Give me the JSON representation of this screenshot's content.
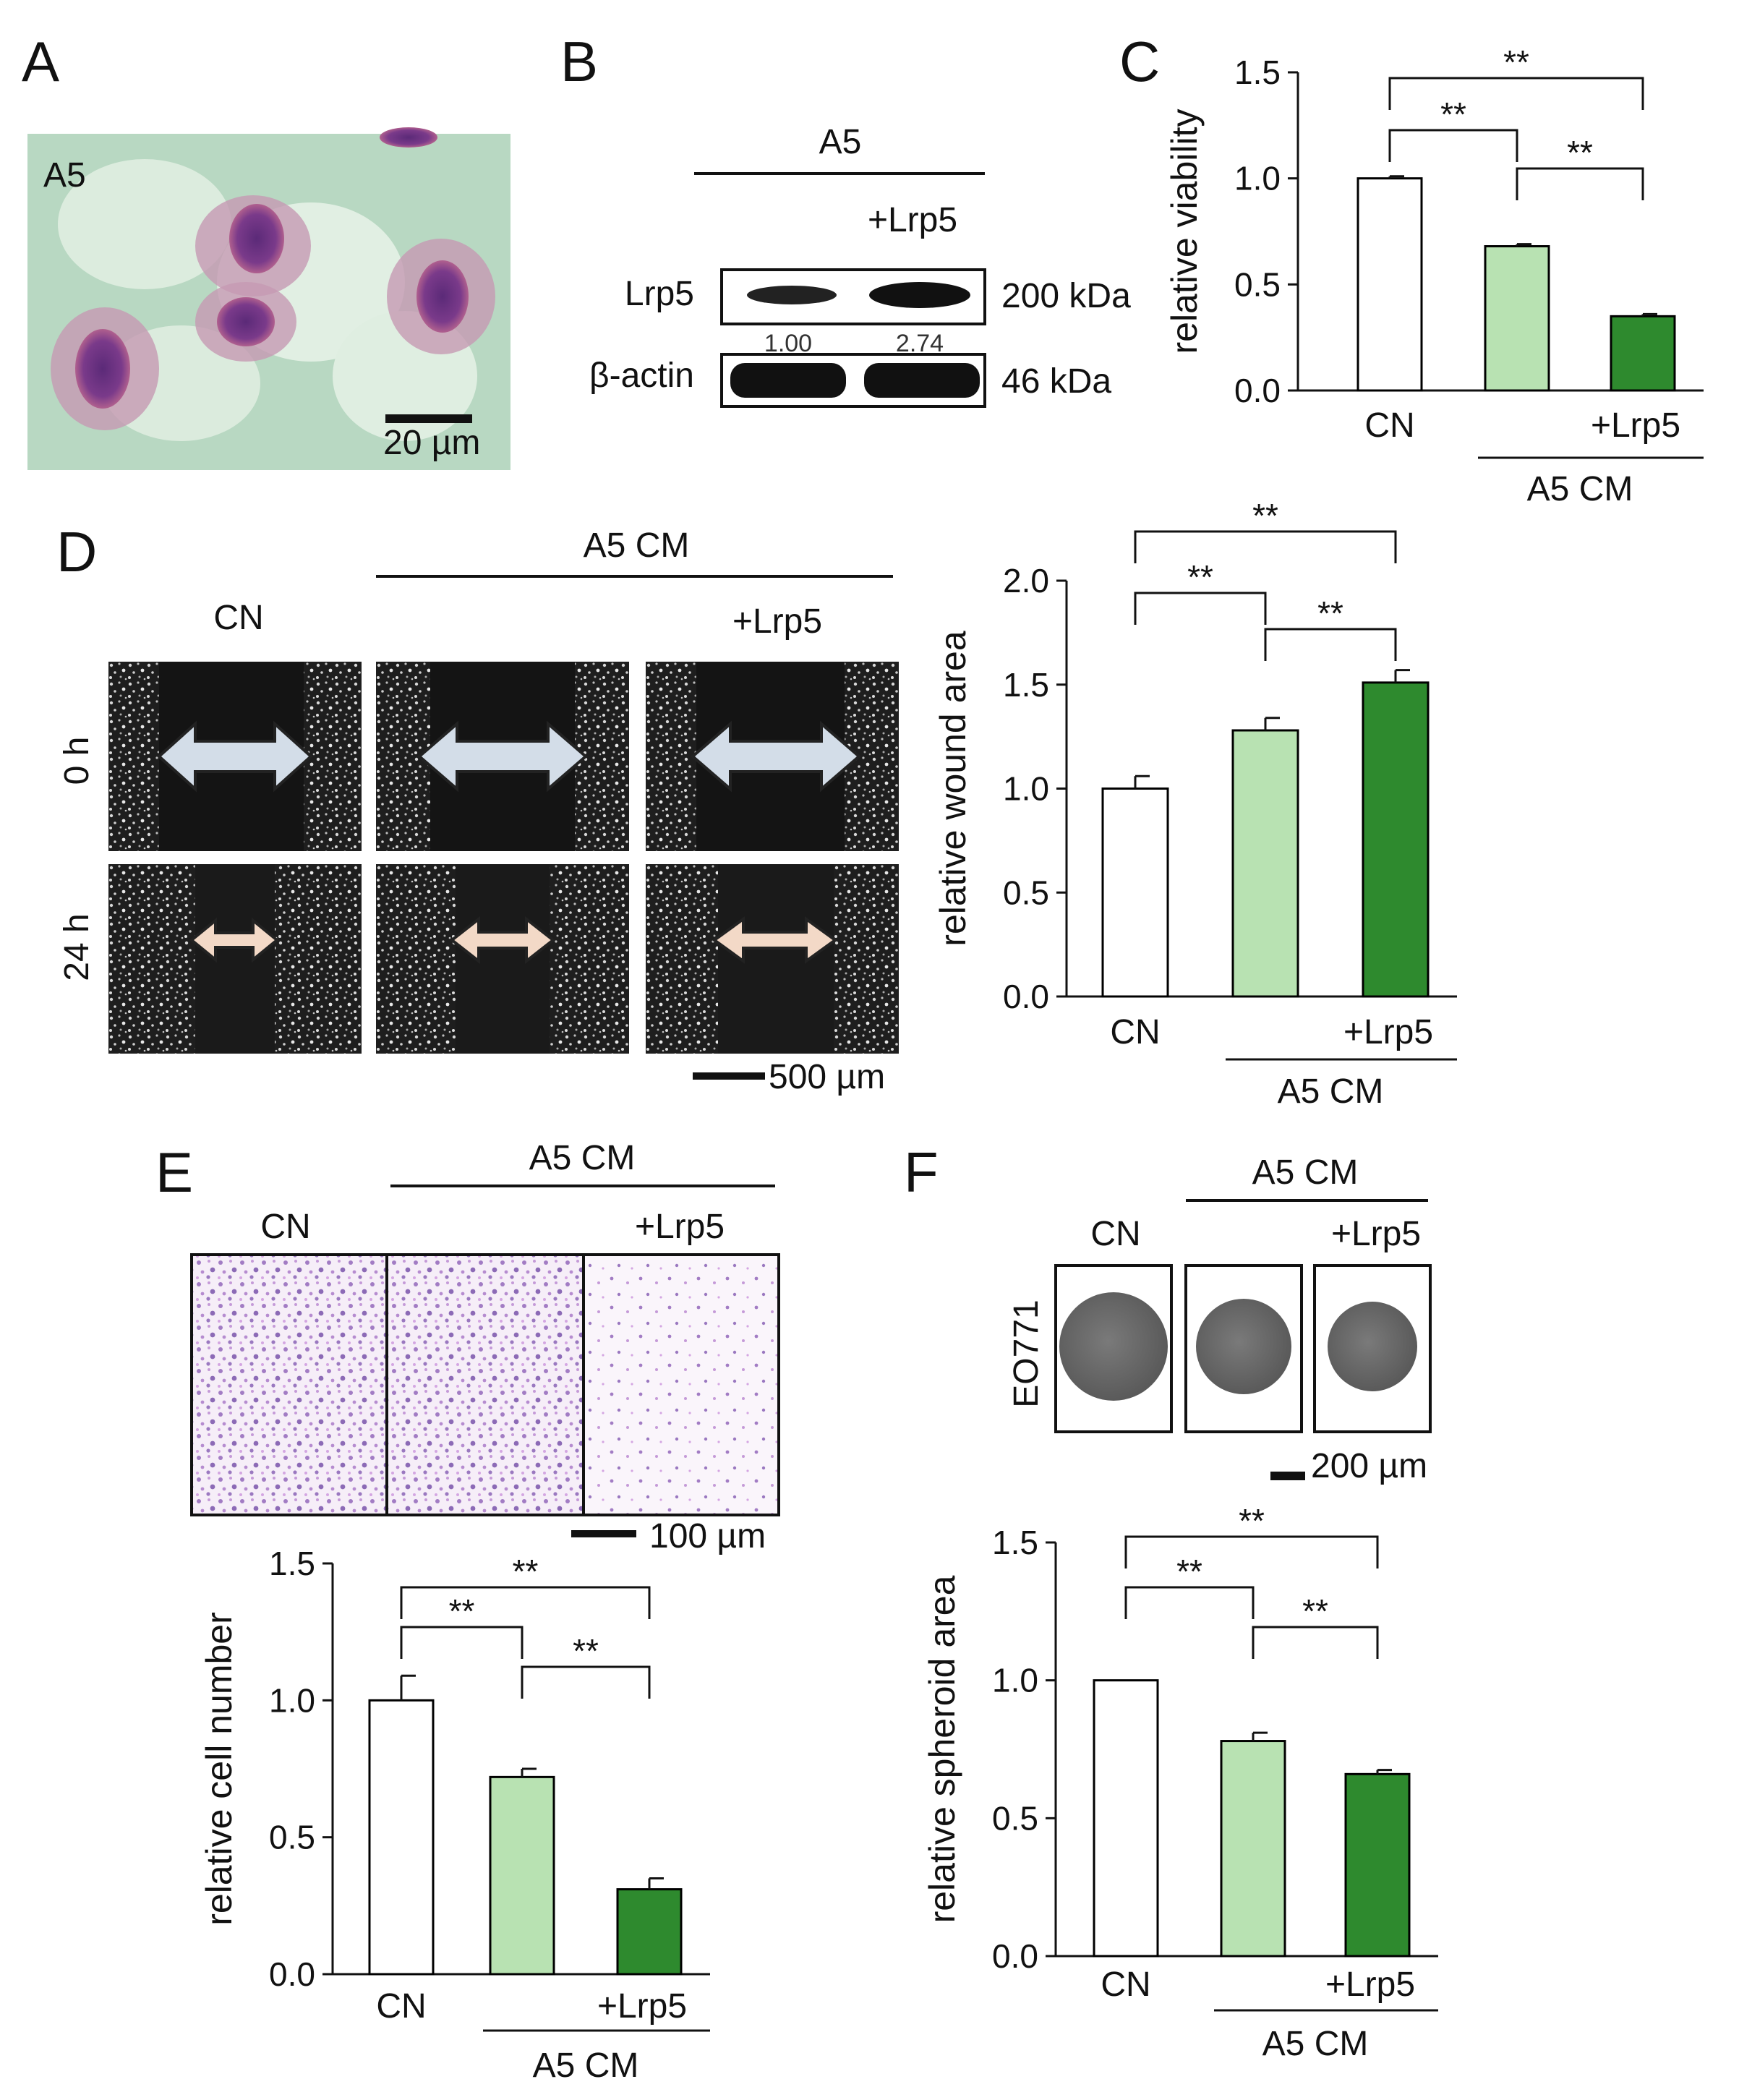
{
  "panels": {
    "A": {
      "label": "A",
      "sample": "A5",
      "scale": "20 µm"
    },
    "B": {
      "label": "B",
      "header": "A5",
      "treatment": "+Lrp5",
      "rows": [
        {
          "name": "Lrp5",
          "mw": "200 kDa",
          "quant": [
            "1.00",
            "2.74"
          ]
        },
        {
          "name": "β-actin",
          "mw": "46 kDa"
        }
      ]
    },
    "C": {
      "label": "C"
    },
    "D": {
      "label": "D",
      "group": "A5 CM",
      "cn": "CN",
      "lrp5": "+Lrp5",
      "times": [
        "0 h",
        "24 h"
      ],
      "scale": "500 µm"
    },
    "E": {
      "label": "E",
      "group": "A5 CM",
      "cn": "CN",
      "lrp5": "+Lrp5",
      "scale": "100 µm"
    },
    "F": {
      "label": "F",
      "group": "A5 CM",
      "cn": "CN",
      "lrp5": "+Lrp5",
      "cell": "EO771",
      "scale": "200 µm"
    }
  },
  "colors": {
    "cn": "#ffffff",
    "a5cm": "#b8e2b2",
    "lrp5": "#2e8a2e",
    "edge": "#000000"
  },
  "chart_data": [
    {
      "id": "C",
      "type": "bar",
      "categories": [
        "CN",
        "",
        "+Lrp5"
      ],
      "group_label": "A5 CM",
      "values": [
        1.0,
        0.68,
        0.35
      ],
      "errors": [
        0.01,
        0.01,
        0.01
      ],
      "ylabel": "relative viability",
      "ylim": [
        0,
        1.5
      ],
      "yticks": [
        "0.0",
        "0.5",
        "1.0",
        "1.5"
      ],
      "significance": [
        {
          "from": 0,
          "to": 1,
          "label": "**"
        },
        {
          "from": 1,
          "to": 2,
          "label": "**"
        },
        {
          "from": 0,
          "to": 2,
          "label": "**"
        }
      ]
    },
    {
      "id": "D",
      "type": "bar",
      "categories": [
        "CN",
        "",
        "+Lrp5"
      ],
      "group_label": "A5 CM",
      "values": [
        1.0,
        1.28,
        1.51
      ],
      "errors": [
        0.06,
        0.06,
        0.06
      ],
      "ylabel": "relative wound area",
      "ylim": [
        0,
        2.0
      ],
      "yticks": [
        "0.0",
        "0.5",
        "1.0",
        "1.5",
        "2.0"
      ],
      "significance": [
        {
          "from": 0,
          "to": 1,
          "label": "**"
        },
        {
          "from": 1,
          "to": 2,
          "label": "**"
        },
        {
          "from": 0,
          "to": 2,
          "label": "**"
        }
      ]
    },
    {
      "id": "E",
      "type": "bar",
      "categories": [
        "CN",
        "",
        "+Lrp5"
      ],
      "group_label": "A5 CM",
      "values": [
        1.0,
        0.72,
        0.31
      ],
      "errors": [
        0.09,
        0.03,
        0.04
      ],
      "ylabel": "relative cell number",
      "ylim": [
        0,
        1.5
      ],
      "yticks": [
        "0.0",
        "0.5",
        "1.0",
        "1.5"
      ],
      "significance": [
        {
          "from": 0,
          "to": 1,
          "label": "**"
        },
        {
          "from": 1,
          "to": 2,
          "label": "**"
        },
        {
          "from": 0,
          "to": 2,
          "label": "**"
        }
      ]
    },
    {
      "id": "F",
      "type": "bar",
      "categories": [
        "CN",
        "",
        "+Lrp5"
      ],
      "group_label": "A5 CM",
      "values": [
        1.0,
        0.78,
        0.66
      ],
      "errors": [
        0.0,
        0.03,
        0.015
      ],
      "ylabel": "relative spheroid area",
      "ylim": [
        0,
        1.5
      ],
      "yticks": [
        "0.0",
        "0.5",
        "1.0",
        "1.5"
      ],
      "significance": [
        {
          "from": 0,
          "to": 1,
          "label": "**"
        },
        {
          "from": 1,
          "to": 2,
          "label": "**"
        },
        {
          "from": 0,
          "to": 2,
          "label": "**"
        }
      ]
    }
  ]
}
